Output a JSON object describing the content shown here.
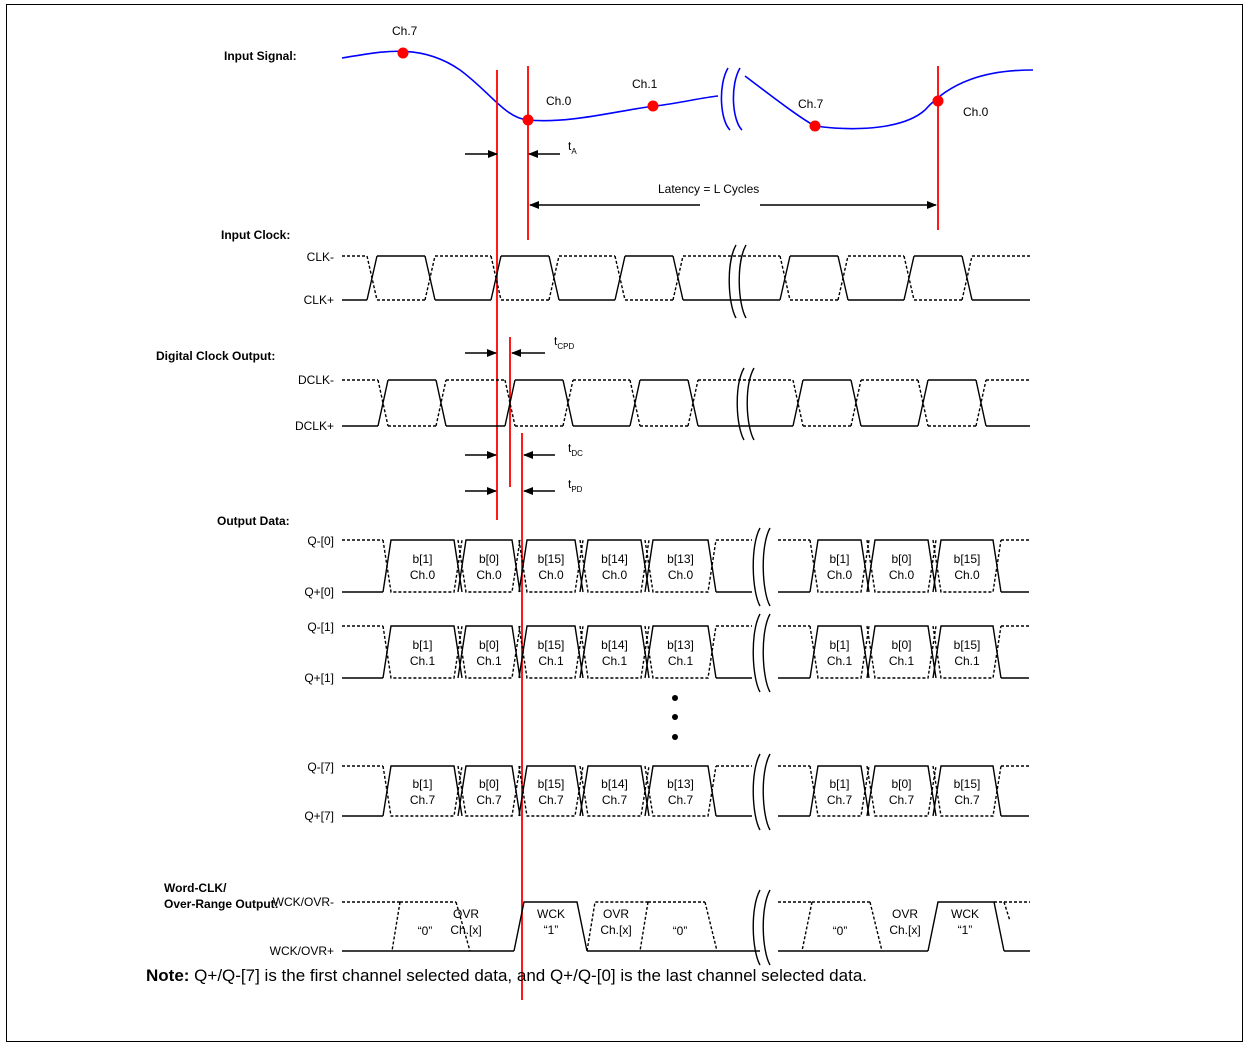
{
  "sections": {
    "input_signal": "Input Signal:",
    "input_clock": "Input Clock:",
    "digital_clock_output": "Digital Clock Output:",
    "output_data": "Output Data:",
    "word_clk_1": "Word-CLK/",
    "word_clk_2": "Over-Range Output:"
  },
  "signal_labels": {
    "ch7_a": "Ch.7",
    "ch0_a": "Ch.0",
    "ch1": "Ch.1",
    "ch7_b": "Ch.7",
    "ch0_b": "Ch.0"
  },
  "timing": {
    "ta": "t",
    "ta_sub": "A",
    "tcpd": "t",
    "tcpd_sub": "CPD",
    "tdc": "t",
    "tdc_sub": "DC",
    "tpd": "t",
    "tpd_sub": "PD",
    "latency": "Latency = L Cycles"
  },
  "signals": {
    "clk_minus": "CLK-",
    "clk_plus": "CLK+",
    "dclk_minus": "DCLK-",
    "dclk_plus": "DCLK+",
    "q0_minus": "Q-[0]",
    "q0_plus": "Q+[0]",
    "q1_minus": "Q-[1]",
    "q1_plus": "Q+[1]",
    "q7_minus": "Q-[7]",
    "q7_plus": "Q+[7]",
    "wck_minus": "WCK/OVR-",
    "wck_plus": "WCK/OVR+"
  },
  "data_rows": [
    {
      "cells": [
        [
          "b[1]",
          "Ch.0"
        ],
        [
          "b[0]",
          "Ch.0"
        ],
        [
          "b[15]",
          "Ch.0"
        ],
        [
          "b[14]",
          "Ch.0"
        ],
        [
          "b[13]",
          "Ch.0"
        ],
        [
          "b[1]",
          "Ch.0"
        ],
        [
          "b[0]",
          "Ch.0"
        ],
        [
          "b[15]",
          "Ch.0"
        ]
      ]
    },
    {
      "cells": [
        [
          "b[1]",
          "Ch.1"
        ],
        [
          "b[0]",
          "Ch.1"
        ],
        [
          "b[15]",
          "Ch.1"
        ],
        [
          "b[14]",
          "Ch.1"
        ],
        [
          "b[13]",
          "Ch.1"
        ],
        [
          "b[1]",
          "Ch.1"
        ],
        [
          "b[0]",
          "Ch.1"
        ],
        [
          "b[15]",
          "Ch.1"
        ]
      ]
    },
    {
      "cells": [
        [
          "b[1]",
          "Ch.7"
        ],
        [
          "b[0]",
          "Ch.7"
        ],
        [
          "b[15]",
          "Ch.7"
        ],
        [
          "b[14]",
          "Ch.7"
        ],
        [
          "b[13]",
          "Ch.7"
        ],
        [
          "b[1]",
          "Ch.7"
        ],
        [
          "b[0]",
          "Ch.7"
        ],
        [
          "b[15]",
          "Ch.7"
        ]
      ]
    }
  ],
  "wck_cells": [
    [
      "“0”",
      ""
    ],
    [
      "OVR",
      "Ch.[x]"
    ],
    [
      "WCK",
      "“1”"
    ],
    [
      "OVR",
      "Ch.[x]"
    ],
    [
      "“0”",
      ""
    ],
    [
      "“0”",
      ""
    ],
    [
      "OVR",
      "Ch.[x]"
    ],
    [
      "WCK",
      "“1”"
    ]
  ],
  "note": {
    "bold": "Note:",
    "text": " Q+/Q-[7] is the first channel selected data, and Q+/Q-[0] is the last channel selected data."
  },
  "colors": {
    "marker": "#ff0000",
    "signal": "#0000ff",
    "ink": "#000000"
  }
}
